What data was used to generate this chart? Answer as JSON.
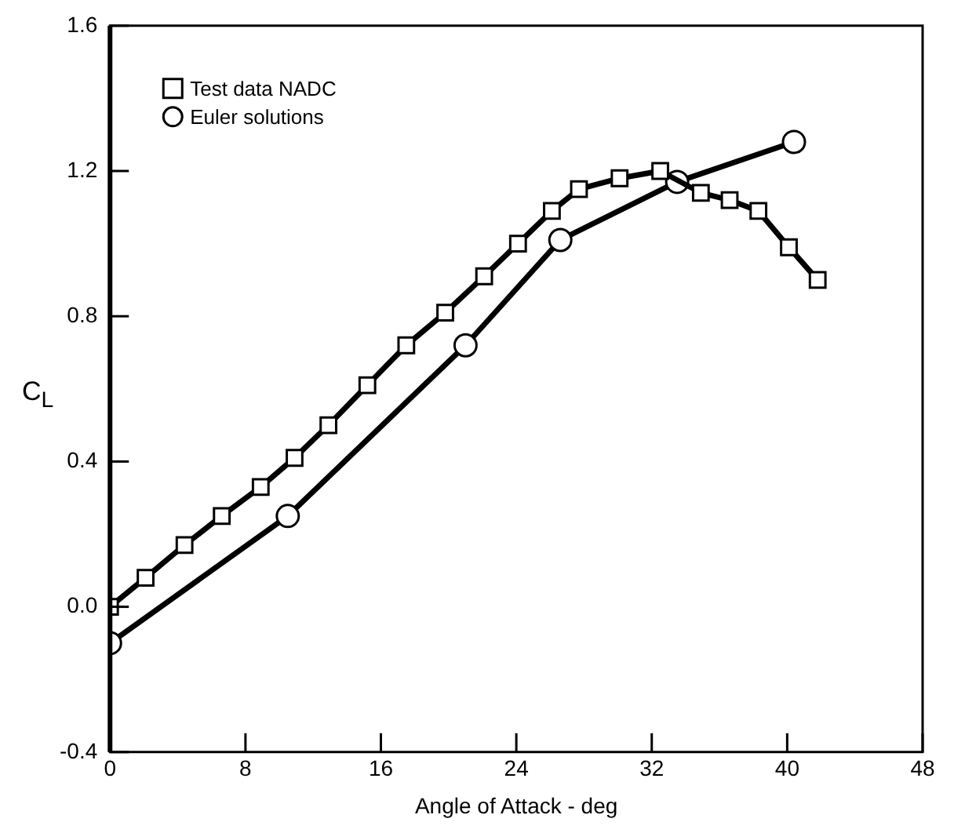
{
  "chart_data": {
    "type": "line",
    "xlabel": "Angle of Attack - deg",
    "ylabel": "C$_{L}$",
    "xlim": [
      0,
      48
    ],
    "xticks": [
      0,
      8,
      16,
      24,
      32,
      40,
      48
    ],
    "ylim": [
      -0.4,
      1.6
    ],
    "yticks": [
      -0.4,
      {
        "value": 0,
        "label": "0.0"
      },
      0.4,
      0.8,
      1.2,
      1.6
    ],
    "grid": false,
    "legend": "top left",
    "line_style": "solid",
    "series": [
      {
        "name": "Test data NADC",
        "color": "#000000",
        "marker": "square",
        "x": [
          0,
          2.1,
          4.4,
          6.6,
          8.9,
          10.9,
          12.9,
          15.2,
          17.5,
          19.8,
          22.1,
          24.1,
          26.1,
          27.7,
          30.1,
          32.5,
          34.9,
          36.6,
          38.3,
          40.1,
          41.8
        ],
        "values": [
          0.0,
          0.08,
          0.17,
          0.25,
          0.33,
          0.41,
          0.5,
          0.61,
          0.72,
          0.81,
          0.91,
          1.0,
          1.09,
          1.15,
          1.18,
          1.2,
          1.14,
          1.12,
          1.09,
          0.99,
          0.9
        ]
      },
      {
        "name": "Euler solutions",
        "color": "#000000",
        "marker": "circle",
        "x": [
          0,
          10.5,
          21.0,
          26.6,
          33.5,
          40.4
        ],
        "values": [
          -0.1,
          0.25,
          0.72,
          1.01,
          1.17,
          1.28
        ]
      }
    ]
  }
}
